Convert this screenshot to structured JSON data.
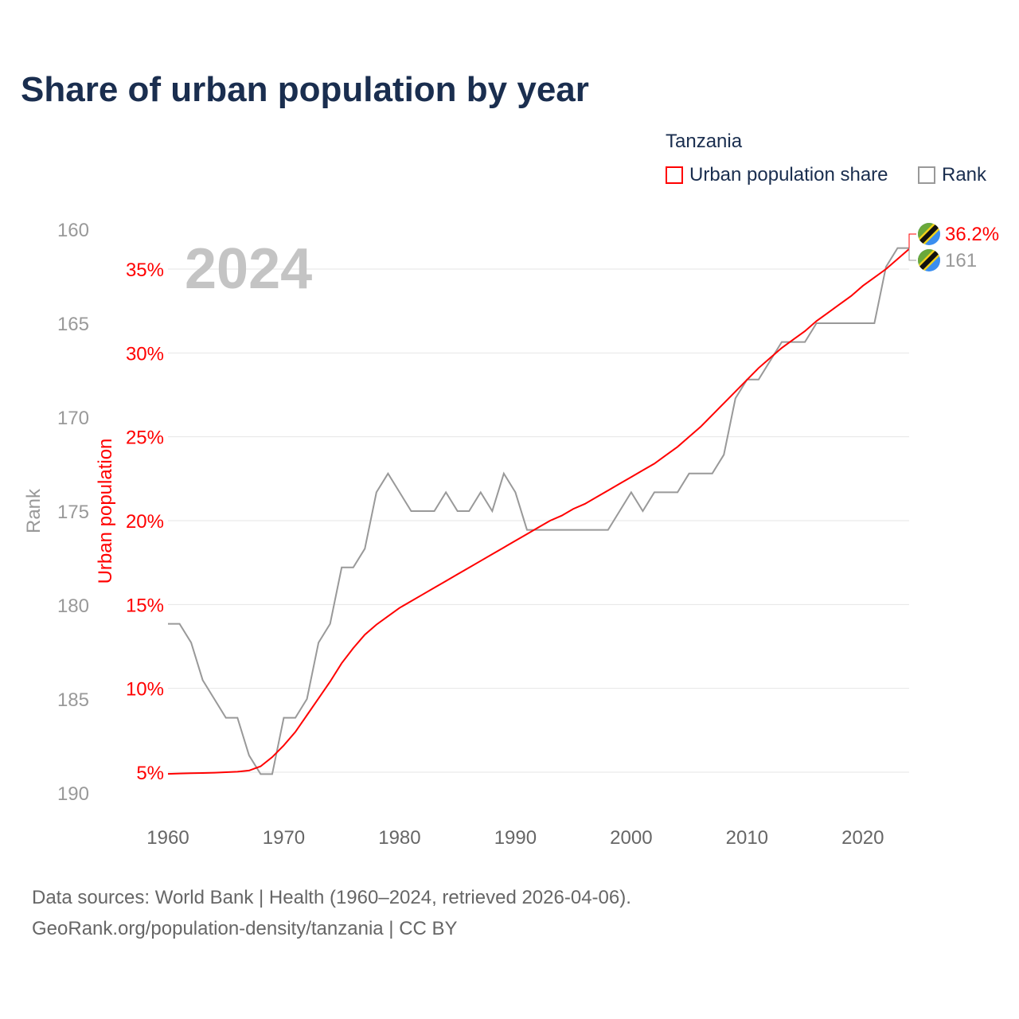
{
  "title": "Share of urban population by year",
  "legend": {
    "country": "Tanzania",
    "items": [
      {
        "label": "Urban population share",
        "color": "#ff0000"
      },
      {
        "label": "Rank",
        "color": "#999999"
      }
    ]
  },
  "source": {
    "line1": "Data sources: World Bank | Health (1960–2024, retrieved 2026-04-06).",
    "line2": "GeoRank.org/population-density/tanzania | CC BY"
  },
  "chart_data": {
    "type": "line",
    "title": "Share of urban population by year",
    "year_label": "2024",
    "xlabel": "",
    "ylabel_left": "Urban population",
    "ylabel_rank": "Rank",
    "xlim": [
      1960,
      2024
    ],
    "x_ticks": [
      "1960",
      "1970",
      "1980",
      "1990",
      "2000",
      "2010",
      "2020"
    ],
    "pct_ticks": [
      "5%",
      "10%",
      "15%",
      "20%",
      "25%",
      "30%",
      "35%"
    ],
    "pct_range": [
      5,
      35
    ],
    "rank_ticks": [
      "160",
      "165",
      "170",
      "175",
      "180",
      "185",
      "190"
    ],
    "rank_range": [
      160,
      190
    ],
    "grid": true,
    "legend_position": "top-right",
    "end_labels": {
      "urban": "36.2%",
      "rank": "161"
    },
    "colors": {
      "urban": "#ff0000",
      "rank": "#999999",
      "grid": "#e6e6e6"
    },
    "x": [
      1960,
      1961,
      1962,
      1963,
      1964,
      1965,
      1966,
      1967,
      1968,
      1969,
      1970,
      1971,
      1972,
      1973,
      1974,
      1975,
      1976,
      1977,
      1978,
      1979,
      1980,
      1981,
      1982,
      1983,
      1984,
      1985,
      1986,
      1987,
      1988,
      1989,
      1990,
      1991,
      1992,
      1993,
      1994,
      1995,
      1996,
      1997,
      1998,
      1999,
      2000,
      2001,
      2002,
      2003,
      2004,
      2005,
      2006,
      2007,
      2008,
      2009,
      2010,
      2011,
      2012,
      2013,
      2014,
      2015,
      2016,
      2017,
      2018,
      2019,
      2020,
      2021,
      2022,
      2023,
      2024
    ],
    "series": [
      {
        "name": "Urban population share",
        "unit": "%",
        "values": [
          4.9,
          4.92,
          4.94,
          4.95,
          4.97,
          5.0,
          5.03,
          5.1,
          5.35,
          5.9,
          6.6,
          7.4,
          8.4,
          9.4,
          10.4,
          11.5,
          12.4,
          13.2,
          13.8,
          14.3,
          14.8,
          15.2,
          15.6,
          16.0,
          16.4,
          16.8,
          17.2,
          17.6,
          18.0,
          18.4,
          18.8,
          19.2,
          19.6,
          20.0,
          20.3,
          20.7,
          21.0,
          21.4,
          21.8,
          22.2,
          22.6,
          23.0,
          23.4,
          23.9,
          24.4,
          25.0,
          25.6,
          26.3,
          27.0,
          27.7,
          28.4,
          29.1,
          29.7,
          30.3,
          30.8,
          31.3,
          31.9,
          32.4,
          32.9,
          33.4,
          34.0,
          34.5,
          35.0,
          35.6,
          36.2
        ]
      },
      {
        "name": "Rank",
        "unit": "rank",
        "values": [
          181,
          181,
          182,
          184,
          185,
          186,
          186,
          188,
          189,
          189,
          186,
          186,
          185,
          182,
          181,
          178,
          178,
          177,
          174,
          173,
          174,
          175,
          175,
          175,
          174,
          175,
          175,
          174,
          175,
          173,
          174,
          176,
          176,
          176,
          176,
          176,
          176,
          176,
          176,
          175,
          174,
          175,
          174,
          174,
          174,
          173,
          173,
          173,
          172,
          169,
          168,
          168,
          167,
          166,
          166,
          166,
          165,
          165,
          165,
          165,
          165,
          165,
          162,
          161,
          161
        ]
      }
    ]
  }
}
